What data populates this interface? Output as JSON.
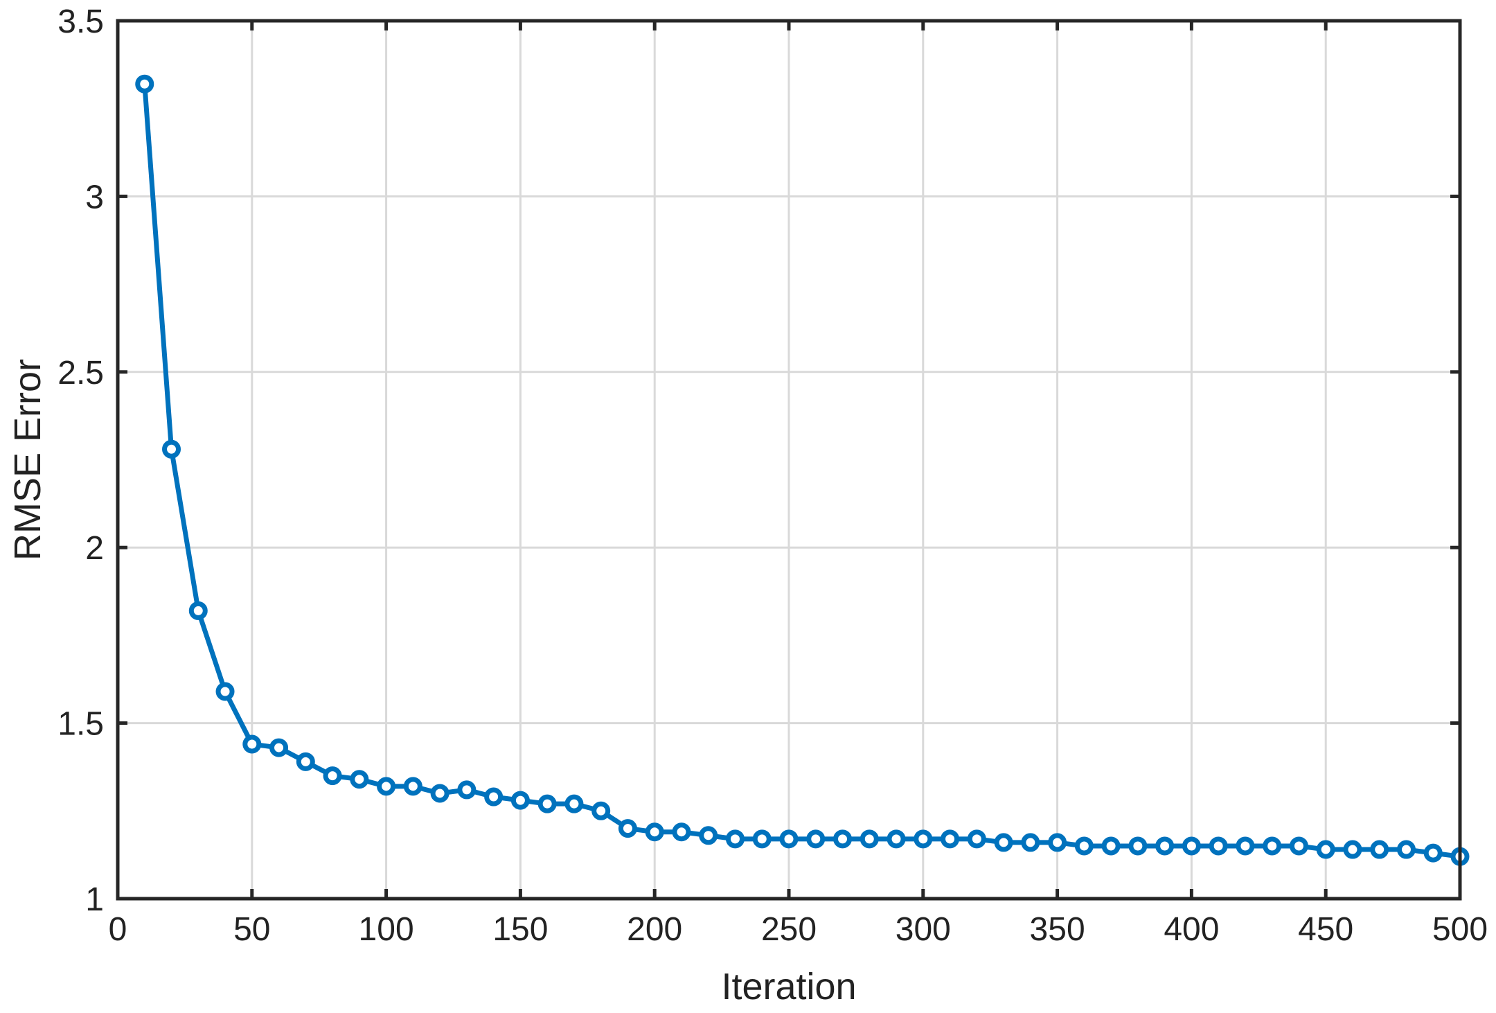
{
  "chart_data": {
    "type": "line",
    "title": "",
    "xlabel": "Iteration",
    "ylabel": "RMSE Error",
    "xlim": [
      0,
      500
    ],
    "ylim": [
      1,
      3.5
    ],
    "xticks": [
      0,
      50,
      100,
      150,
      200,
      250,
      300,
      350,
      400,
      450,
      500
    ],
    "xtick_labels": [
      "0",
      "50",
      "100",
      "150",
      "200",
      "250",
      "300",
      "350",
      "400",
      "450",
      "500"
    ],
    "yticks": [
      1,
      1.5,
      2,
      2.5,
      3,
      3.5
    ],
    "ytick_labels": [
      "1",
      "1.5",
      "2",
      "2.5",
      "3",
      "3.5"
    ],
    "grid": true,
    "legend": "none",
    "series_color": "#0072BD",
    "x": [
      10,
      20,
      30,
      40,
      50,
      60,
      70,
      80,
      90,
      100,
      110,
      120,
      130,
      140,
      150,
      160,
      170,
      180,
      190,
      200,
      210,
      220,
      230,
      240,
      250,
      260,
      270,
      280,
      290,
      300,
      310,
      320,
      330,
      340,
      350,
      360,
      370,
      380,
      390,
      400,
      410,
      420,
      430,
      440,
      450,
      460,
      470,
      480,
      490,
      500
    ],
    "series": [
      {
        "values": [
          3.32,
          2.28,
          1.82,
          1.59,
          1.44,
          1.43,
          1.39,
          1.35,
          1.34,
          1.32,
          1.32,
          1.3,
          1.31,
          1.29,
          1.28,
          1.27,
          1.27,
          1.25,
          1.2,
          1.19,
          1.19,
          1.18,
          1.17,
          1.17,
          1.17,
          1.17,
          1.17,
          1.17,
          1.17,
          1.17,
          1.17,
          1.17,
          1.16,
          1.16,
          1.16,
          1.15,
          1.15,
          1.15,
          1.15,
          1.15,
          1.15,
          1.15,
          1.15,
          1.15,
          1.14,
          1.14,
          1.14,
          1.14,
          1.13,
          1.12
        ]
      }
    ]
  }
}
